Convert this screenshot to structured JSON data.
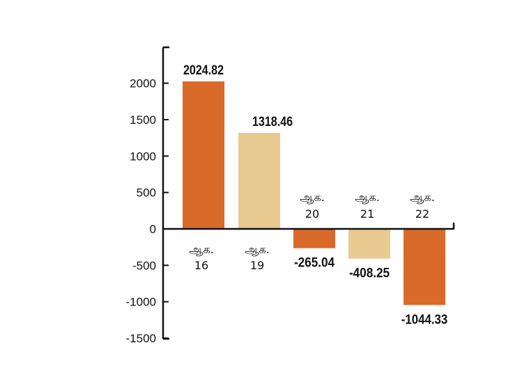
{
  "chart_data": {
    "type": "bar",
    "categories": [
      {
        "line1": "ஆக.",
        "line2": "16"
      },
      {
        "line1": "ஆக.",
        "line2": "19"
      },
      {
        "line1": "ஆக.",
        "line2": "20"
      },
      {
        "line1": "ஆக.",
        "line2": "21"
      },
      {
        "line1": "ஆக.",
        "line2": "22"
      }
    ],
    "values": [
      2024.82,
      1318.46,
      -265.04,
      -408.25,
      -1044.33
    ],
    "value_labels": [
      "2024.82",
      "1318.46",
      "-265.04",
      "-408.25",
      "-1044.33"
    ],
    "bar_colors": [
      "#d96a2a",
      "#e8c990",
      "#d96a2a",
      "#e8c990",
      "#d96a2a"
    ],
    "yticks": [
      2000,
      1500,
      1000,
      500,
      0,
      -500,
      -1000,
      -1500
    ],
    "ytick_labels": [
      "2000",
      "1500",
      "1000",
      "500",
      "0",
      "-500",
      "-1000",
      "-1500"
    ],
    "ylim": [
      -1500,
      2500
    ],
    "grid": false,
    "title": "",
    "xlabel": "",
    "ylabel": ""
  }
}
